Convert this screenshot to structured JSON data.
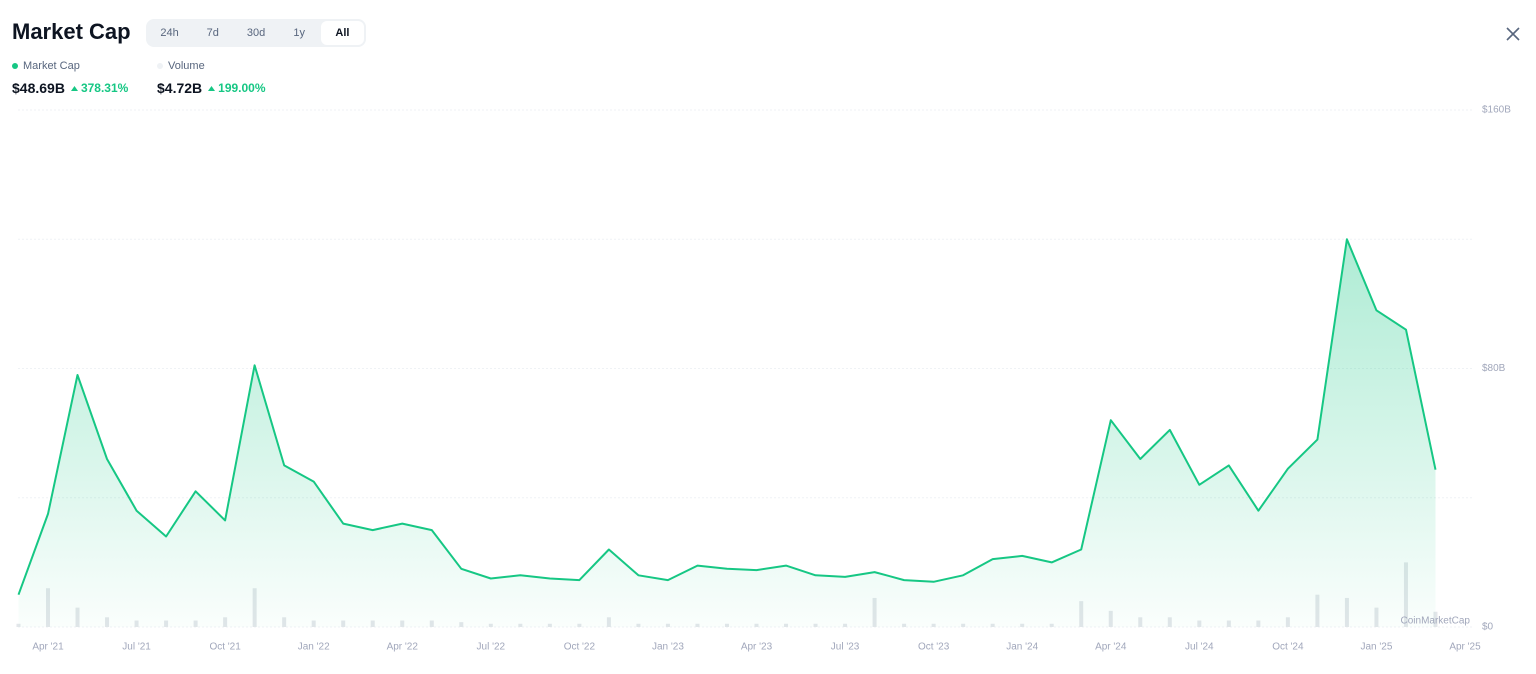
{
  "header": {
    "title": "Market Cap",
    "tabs": [
      "24h",
      "7d",
      "30d",
      "1y",
      "All"
    ],
    "active_tab": 4,
    "stats": [
      {
        "name": "Market Cap",
        "color": "#16c784",
        "value": "$48.69B",
        "change": "378.31%"
      },
      {
        "name": "Volume",
        "color": "#eff2f5",
        "value": "$4.72B",
        "change": "199.00%"
      }
    ]
  },
  "chart_data": {
    "type": "line",
    "x": [
      "2021-03",
      "2021-04",
      "2021-05",
      "2021-06",
      "2021-07",
      "2021-08",
      "2021-09",
      "2021-10",
      "2021-11",
      "2021-12",
      "2022-01",
      "2022-02",
      "2022-03",
      "2022-04",
      "2022-05",
      "2022-06",
      "2022-07",
      "2022-08",
      "2022-09",
      "2022-10",
      "2022-11",
      "2022-12",
      "2023-01",
      "2023-02",
      "2023-03",
      "2023-04",
      "2023-05",
      "2023-06",
      "2023-07",
      "2023-08",
      "2023-09",
      "2023-10",
      "2023-11",
      "2023-12",
      "2024-01",
      "2024-02",
      "2024-03",
      "2024-04",
      "2024-05",
      "2024-06",
      "2024-07",
      "2024-08",
      "2024-09",
      "2024-10",
      "2024-11",
      "2024-12",
      "2025-01",
      "2025-02",
      "2025-03"
    ],
    "series": [
      {
        "name": "Market Cap",
        "color": "#16c784",
        "values": [
          10,
          35,
          78,
          52,
          36,
          28,
          42,
          33,
          81,
          50,
          45,
          32,
          30,
          32,
          30,
          18,
          15,
          16,
          15,
          14.5,
          24,
          16,
          14.5,
          19,
          18,
          17.6,
          19,
          16,
          15.5,
          17,
          14.5,
          14,
          16,
          21,
          22,
          20,
          24,
          64,
          52,
          61,
          44,
          50,
          36,
          49,
          58,
          120,
          98,
          92,
          48.69
        ]
      },
      {
        "name": "Volume",
        "color": "#e3e6ea",
        "values": [
          1,
          12,
          6,
          3,
          2,
          2,
          2,
          3,
          12,
          3,
          2,
          2,
          2,
          2,
          2,
          1.5,
          1,
          1,
          1,
          1,
          3,
          1,
          1,
          1,
          1,
          1,
          1,
          1,
          1,
          9,
          1,
          1,
          1,
          1,
          1,
          1,
          8,
          5,
          3,
          3,
          2,
          2,
          2,
          3,
          10,
          9,
          6,
          20,
          4.72
        ]
      }
    ],
    "ylim": [
      0,
      160
    ],
    "yticks": [
      {
        "value": 0,
        "label": "$0"
      },
      {
        "value": 80,
        "label": "$80B"
      },
      {
        "value": 160,
        "label": "$160B"
      }
    ],
    "minor_grid": [
      40,
      120
    ],
    "xticks": [
      {
        "value": "2021-04",
        "label": "Apr '21"
      },
      {
        "value": "2021-07",
        "label": "Jul '21"
      },
      {
        "value": "2021-10",
        "label": "Oct '21"
      },
      {
        "value": "2022-01",
        "label": "Jan '22"
      },
      {
        "value": "2022-04",
        "label": "Apr '22"
      },
      {
        "value": "2022-07",
        "label": "Jul '22"
      },
      {
        "value": "2022-10",
        "label": "Oct '22"
      },
      {
        "value": "2023-01",
        "label": "Jan '23"
      },
      {
        "value": "2023-04",
        "label": "Apr '23"
      },
      {
        "value": "2023-07",
        "label": "Jul '23"
      },
      {
        "value": "2023-10",
        "label": "Oct '23"
      },
      {
        "value": "2024-01",
        "label": "Jan '24"
      },
      {
        "value": "2024-04",
        "label": "Apr '24"
      },
      {
        "value": "2024-07",
        "label": "Jul '24"
      },
      {
        "value": "2024-10",
        "label": "Oct '24"
      },
      {
        "value": "2025-01",
        "label": "Jan '25"
      },
      {
        "value": "2025-04",
        "label": "Apr '25"
      }
    ],
    "grid": true,
    "watermark": "CoinMarketCap"
  }
}
